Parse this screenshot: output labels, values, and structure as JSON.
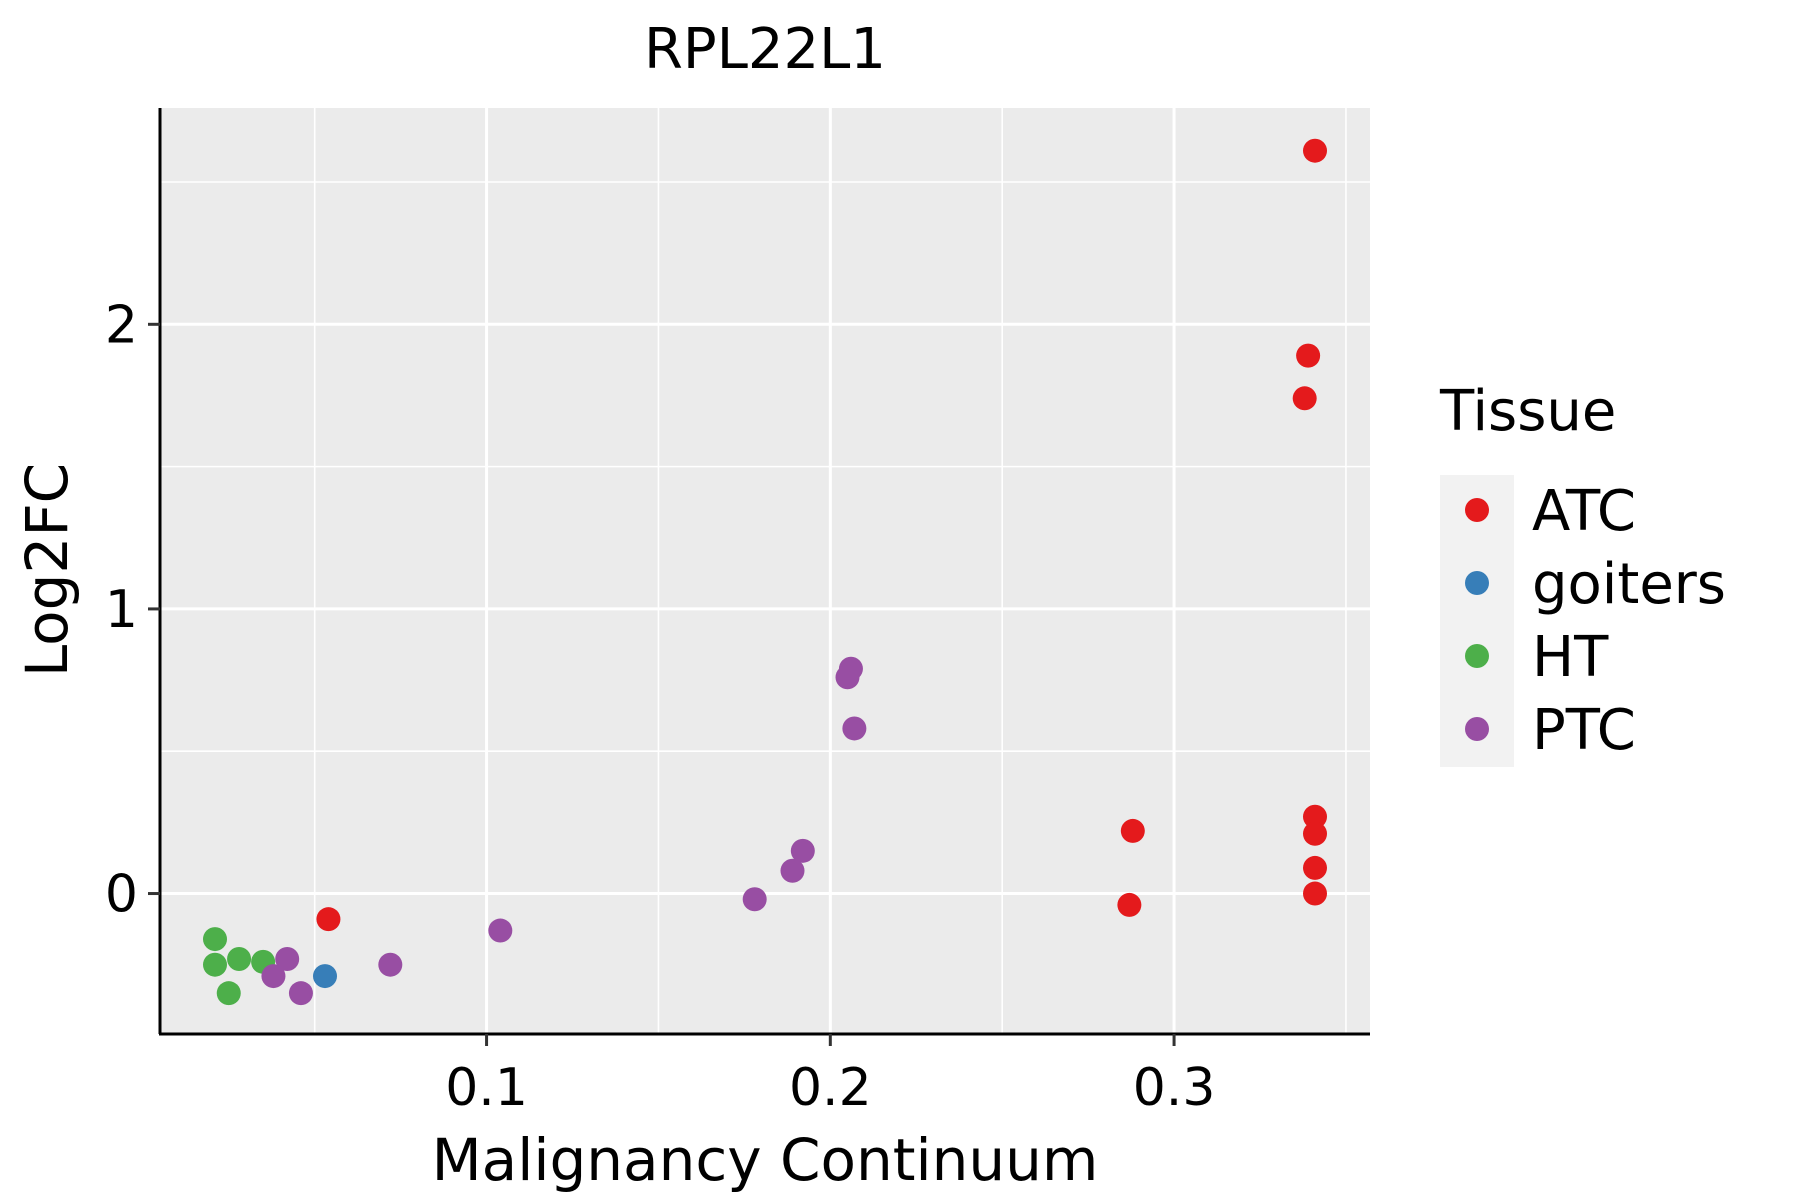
{
  "chart_data": {
    "type": "scatter",
    "title": "RPL22L1",
    "xlabel": "Malignancy Continuum",
    "ylabel": "Log2FC",
    "xlim": [
      0.005,
      0.357
    ],
    "ylim": [
      -0.49,
      2.76
    ],
    "x_ticks": [
      0.1,
      0.2,
      0.3
    ],
    "x_tick_labels": [
      "0.1",
      "0.2",
      "0.3"
    ],
    "x_minor_ticks": [
      0.05,
      0.15,
      0.25,
      0.35
    ],
    "y_ticks": [
      0,
      1,
      2
    ],
    "y_tick_labels": [
      "0",
      "1",
      "2"
    ],
    "y_minor_ticks": [
      0.5,
      1.5,
      2.5
    ],
    "grid": true,
    "legend": {
      "title": "Tissue",
      "position": "right"
    },
    "series": [
      {
        "name": "ATC",
        "color": "#E41A1C",
        "points": [
          {
            "x": 0.341,
            "y": 2.61
          },
          {
            "x": 0.339,
            "y": 1.89
          },
          {
            "x": 0.338,
            "y": 1.74
          },
          {
            "x": 0.341,
            "y": 0.27
          },
          {
            "x": 0.341,
            "y": 0.21
          },
          {
            "x": 0.341,
            "y": 0.09
          },
          {
            "x": 0.341,
            "y": 0.0
          },
          {
            "x": 0.288,
            "y": 0.22
          },
          {
            "x": 0.287,
            "y": -0.04
          },
          {
            "x": 0.054,
            "y": -0.09
          }
        ]
      },
      {
        "name": "goiters",
        "color": "#377EB8",
        "points": [
          {
            "x": 0.053,
            "y": -0.29
          }
        ]
      },
      {
        "name": "HT",
        "color": "#4DAF4A",
        "points": [
          {
            "x": 0.021,
            "y": -0.16
          },
          {
            "x": 0.021,
            "y": -0.25
          },
          {
            "x": 0.028,
            "y": -0.23
          },
          {
            "x": 0.035,
            "y": -0.24
          },
          {
            "x": 0.025,
            "y": -0.35
          }
        ]
      },
      {
        "name": "PTC",
        "color": "#984EA3",
        "points": [
          {
            "x": 0.042,
            "y": -0.23
          },
          {
            "x": 0.038,
            "y": -0.29
          },
          {
            "x": 0.046,
            "y": -0.35
          },
          {
            "x": 0.072,
            "y": -0.25
          },
          {
            "x": 0.104,
            "y": -0.13
          },
          {
            "x": 0.178,
            "y": -0.02
          },
          {
            "x": 0.189,
            "y": 0.08
          },
          {
            "x": 0.192,
            "y": 0.15
          },
          {
            "x": 0.206,
            "y": 0.79
          },
          {
            "x": 0.205,
            "y": 0.76
          },
          {
            "x": 0.207,
            "y": 0.58
          }
        ]
      }
    ]
  }
}
